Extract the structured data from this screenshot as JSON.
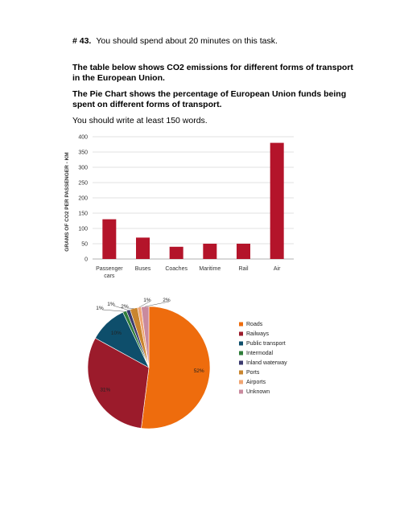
{
  "prompt": {
    "number": "# 43.",
    "instruction": "You should spend about 20 minutes on this task.",
    "table_description": "The table below shows CO2 emissions for different forms of transport in the European Union.",
    "pie_description": "The Pie Chart shows the percentage of European Union funds being spent on different forms of transport.",
    "word_count": "You should write at least 150 words."
  },
  "colors": {
    "bar": "#b4142a",
    "roads": "#ee6c0d",
    "railways": "#9b1b2b",
    "public_transport": "#0e4e6b",
    "intermodal": "#2f7d3a",
    "inland_waterway": "#3b3a6e",
    "ports": "#c9852f",
    "airports": "#f0a573",
    "unknown": "#c98a9e"
  },
  "chart_data": [
    {
      "type": "bar",
      "title": "",
      "xlabel": "",
      "ylabel": "GRAMS OF CO2 PER PASSENGER - KM",
      "ylim": [
        0,
        400
      ],
      "yticks": [
        "0",
        "50",
        "100",
        "150",
        "200",
        "250",
        "300",
        "350",
        "400"
      ],
      "grid": true,
      "categories": [
        "Passenger cars",
        "Buses",
        "Coaches",
        "Maritime",
        "Rail",
        "Air"
      ],
      "values": [
        130,
        70,
        40,
        50,
        50,
        380
      ]
    },
    {
      "type": "pie",
      "title": "",
      "legend_position": "right",
      "labels": [
        "Roads",
        "Railways",
        "Public transport",
        "Intermodal",
        "Inland waterway",
        "Ports",
        "Airports",
        "Unknown"
      ],
      "values": [
        52,
        31,
        10,
        1,
        1,
        2,
        1,
        2
      ],
      "data_labels": [
        "52%",
        "31%",
        "10%",
        "1%",
        "1%",
        "2%",
        "1%",
        "2%"
      ]
    }
  ]
}
